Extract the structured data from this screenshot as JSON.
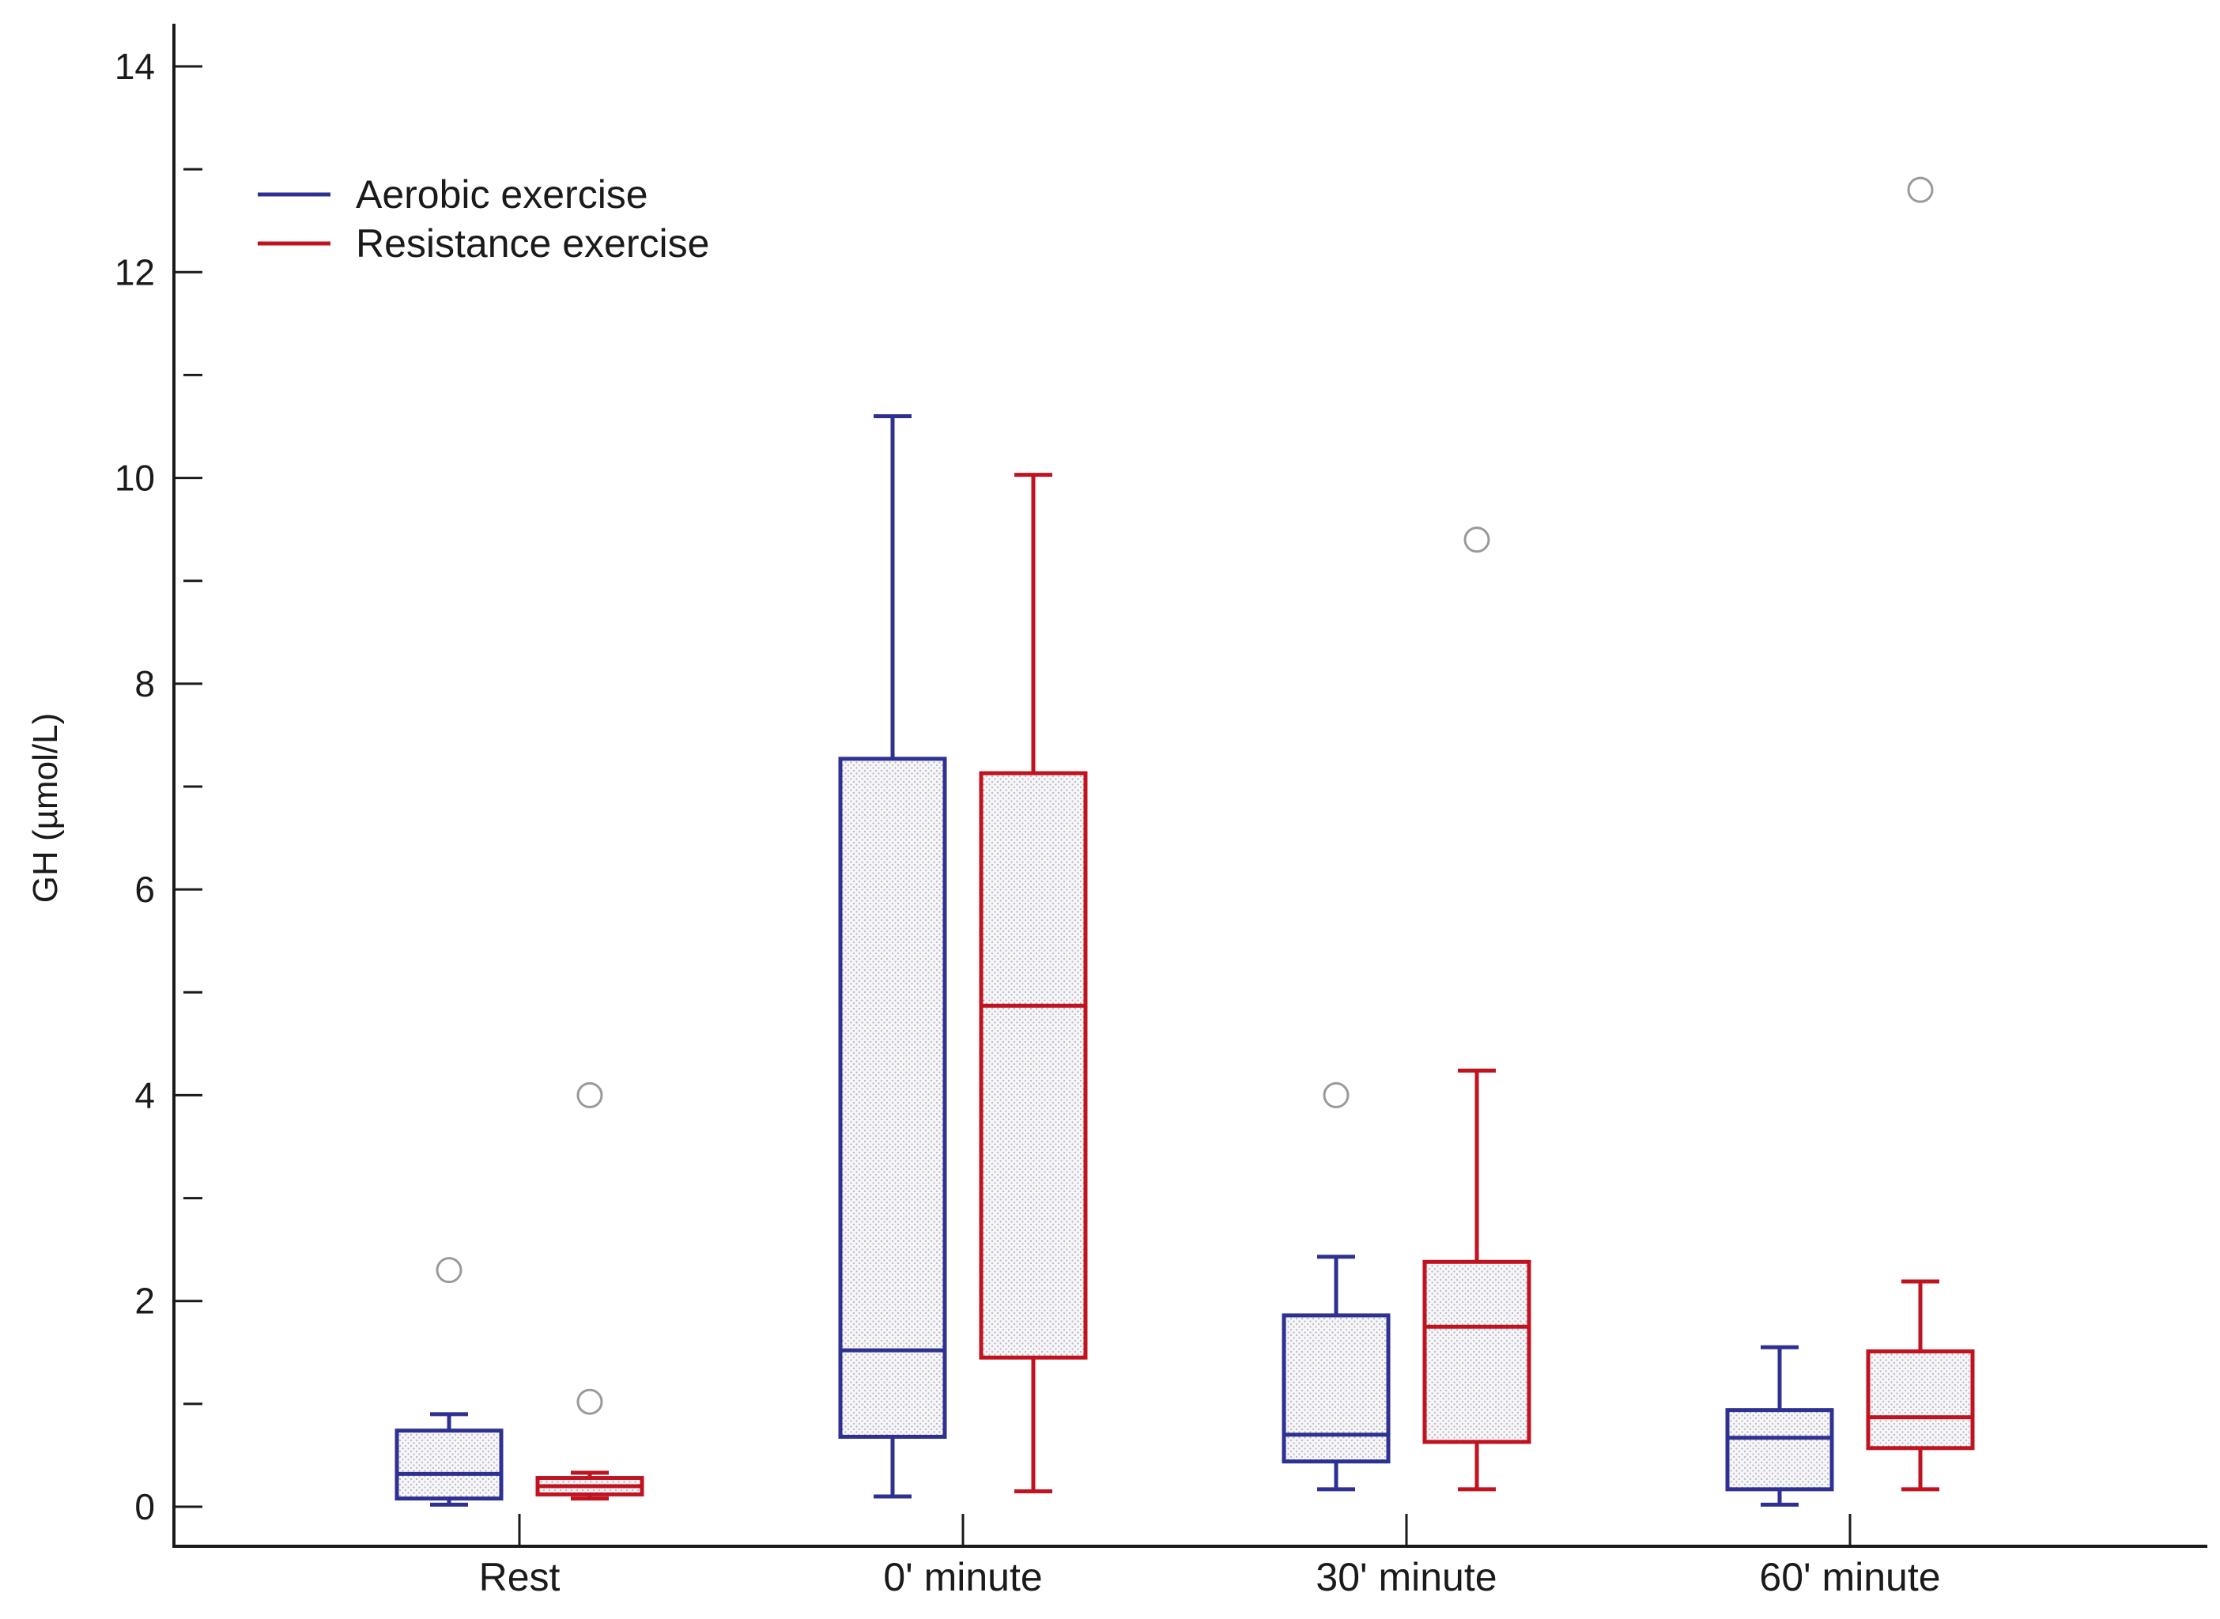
{
  "chart_data": {
    "type": "boxplot",
    "title": "",
    "xlabel": "",
    "ylabel": "GH (µmol/L)",
    "ylim": [
      0,
      14
    ],
    "yticks": [
      0,
      2,
      4,
      6,
      8,
      10,
      12,
      14
    ],
    "yminor_step": 1,
    "grid": false,
    "legend_position": "top-left",
    "categories": [
      "Rest",
      "0' minute",
      "30' minute",
      "60' minute"
    ],
    "series": [
      {
        "name": "Aerobic exercise",
        "color": "#2e3192",
        "boxes": [
          {
            "whisker_low": 0.02,
            "q1": 0.08,
            "median": 0.32,
            "q3": 0.74,
            "whisker_high": 0.9,
            "outliers": [
              2.3
            ]
          },
          {
            "whisker_low": 0.1,
            "q1": 0.68,
            "median": 1.52,
            "q3": 7.27,
            "whisker_high": 10.6,
            "outliers": []
          },
          {
            "whisker_low": 0.17,
            "q1": 0.44,
            "median": 0.7,
            "q3": 1.86,
            "whisker_high": 2.43,
            "outliers": [
              4.0
            ]
          },
          {
            "whisker_low": 0.02,
            "q1": 0.17,
            "median": 0.67,
            "q3": 0.94,
            "whisker_high": 1.55,
            "outliers": []
          }
        ]
      },
      {
        "name": "Resistance exercise",
        "color": "#c1121f",
        "boxes": [
          {
            "whisker_low": 0.08,
            "q1": 0.12,
            "median": 0.2,
            "q3": 0.28,
            "whisker_high": 0.33,
            "outliers": [
              4.0,
              1.02
            ]
          },
          {
            "whisker_low": 0.15,
            "q1": 1.45,
            "median": 4.87,
            "q3": 7.13,
            "whisker_high": 10.03,
            "outliers": []
          },
          {
            "whisker_low": 0.17,
            "q1": 0.63,
            "median": 1.75,
            "q3": 2.38,
            "whisker_high": 4.24,
            "outliers": [
              9.4
            ]
          },
          {
            "whisker_low": 0.17,
            "q1": 0.57,
            "median": 0.87,
            "q3": 1.51,
            "whisker_high": 2.19,
            "outliers": [
              12.8
            ]
          }
        ]
      }
    ]
  }
}
